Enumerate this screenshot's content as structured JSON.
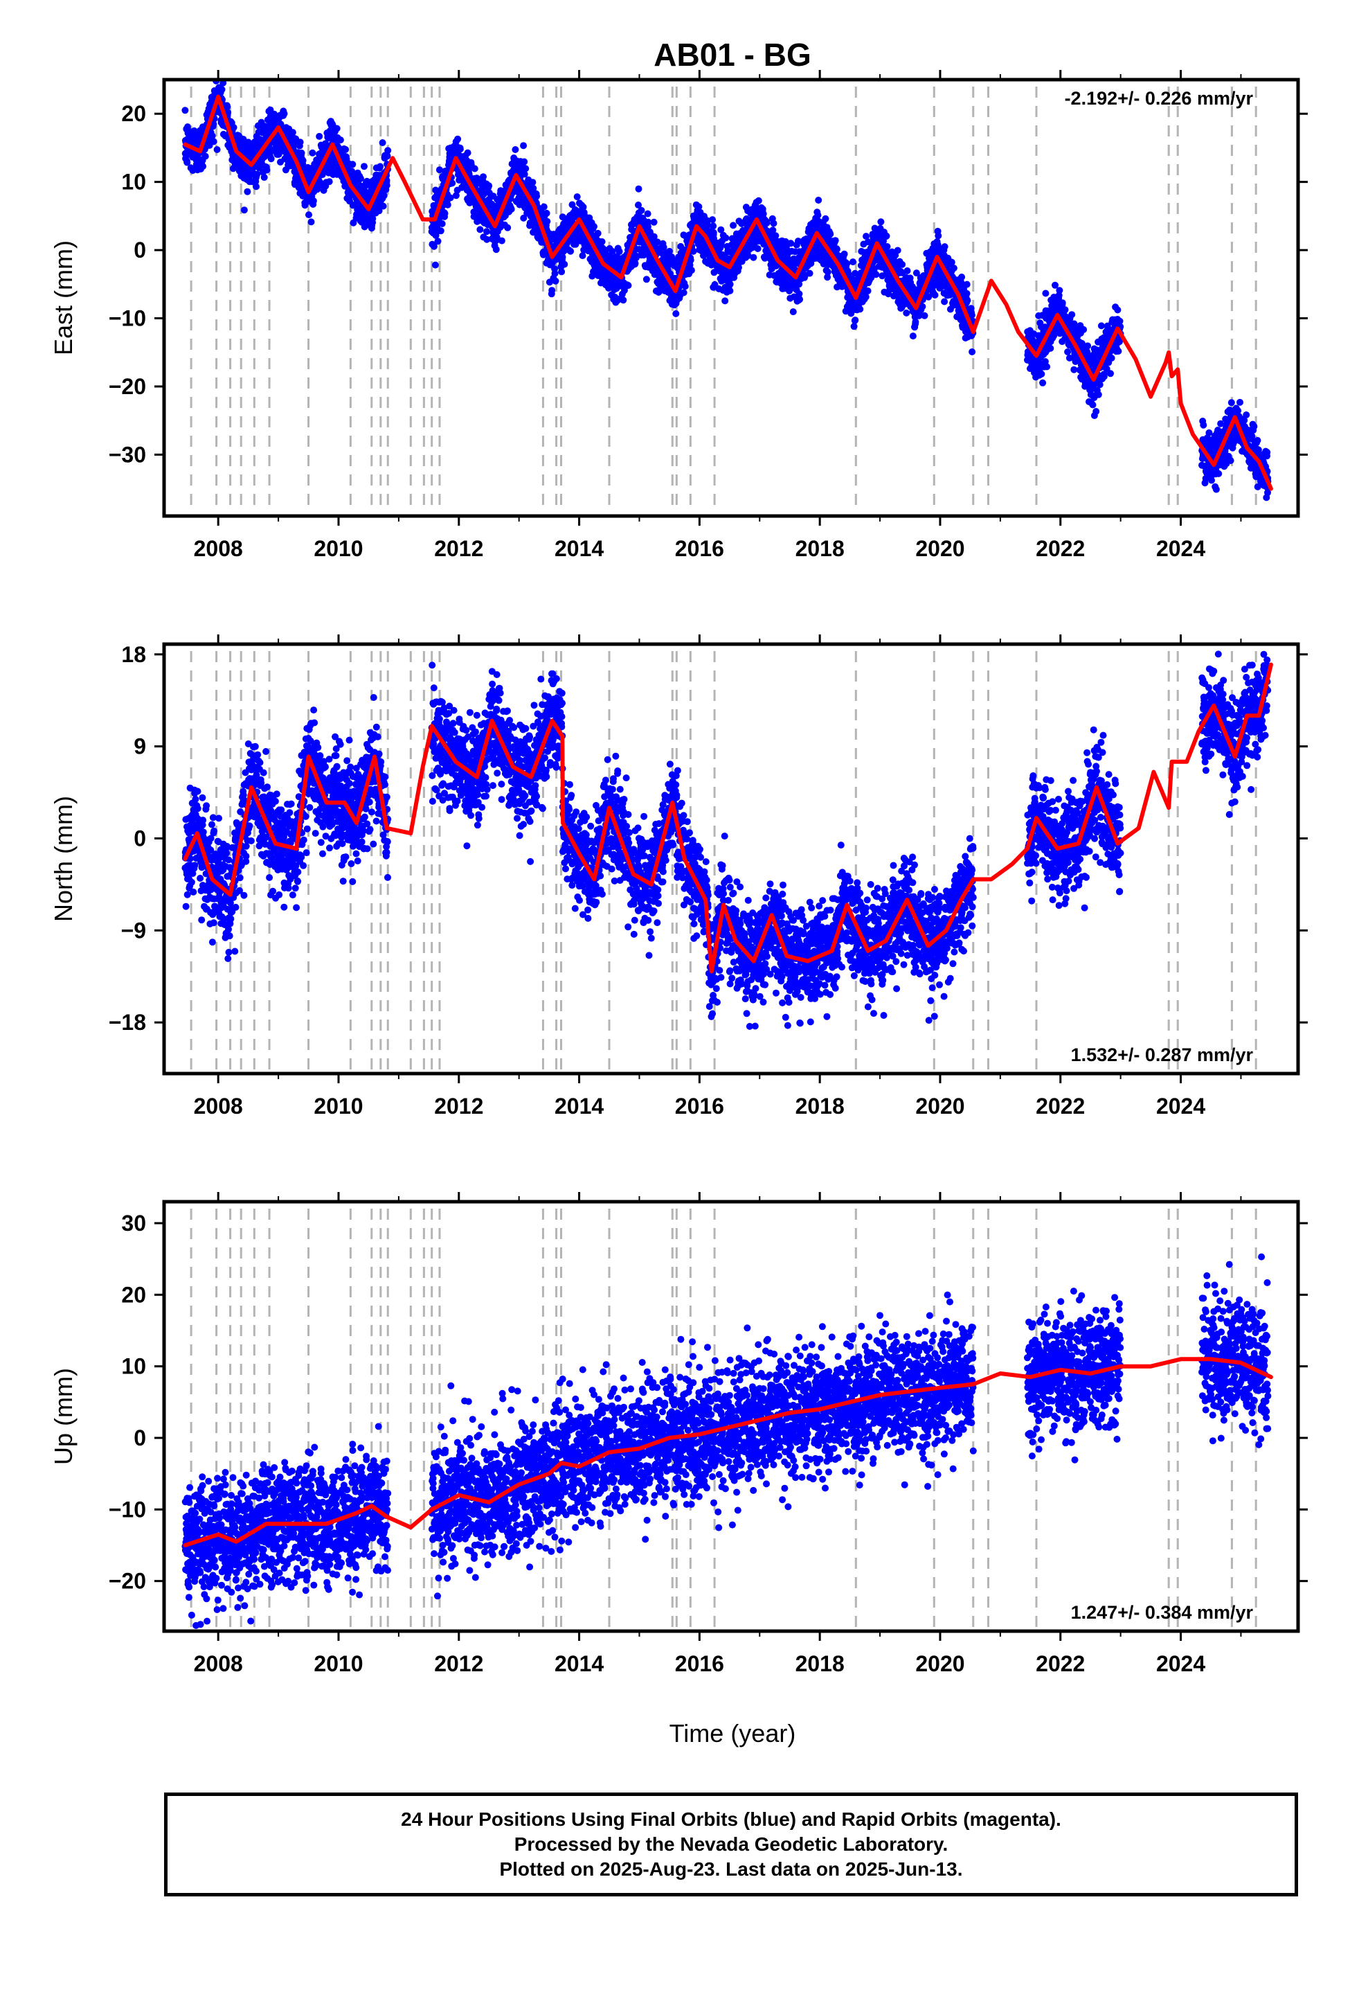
{
  "title": "AB01 - BG",
  "xlabel": "Time (year)",
  "x_ticks": [
    2008,
    2010,
    2012,
    2014,
    2016,
    2018,
    2020,
    2022,
    2024
  ],
  "xlim": [
    2007.1,
    2025.95
  ],
  "colors": {
    "points": "#0000ff",
    "model": "#ff0000",
    "steps": "#b4b4b4"
  },
  "step_dates": [
    2007.55,
    2007.97,
    2008.2,
    2008.38,
    2008.6,
    2008.85,
    2009.5,
    2010.2,
    2010.55,
    2010.7,
    2010.82,
    2011.2,
    2011.42,
    2011.55,
    2011.68,
    2013.4,
    2013.62,
    2013.7,
    2014.5,
    2015.55,
    2015.62,
    2015.85,
    2016.25,
    2018.6,
    2019.9,
    2020.55,
    2020.8,
    2021.6,
    2023.8,
    2023.95,
    2024.85,
    2025.25
  ],
  "caption": [
    "24 Hour Positions Using Final Orbits (blue) and Rapid Orbits (magenta).",
    "Processed by the Nevada Geodetic Laboratory.",
    "Plotted on 2025-Aug-23. Last data on 2025-Jun-13."
  ],
  "chart_data": [
    {
      "type": "scatter",
      "name": "east",
      "ylabel": "East (mm)",
      "rate_text": "-2.192+/- 0.226 mm/yr",
      "rate_position": "top-right",
      "ylim": [
        -39,
        25
      ],
      "y_ticks": [
        -30,
        -20,
        -10,
        0,
        10,
        20
      ],
      "y_tick_labels": [
        "−30",
        "−20",
        "−10",
        "0",
        "10",
        "20"
      ],
      "data_ranges": [
        [
          2007.45,
          2010.82
        ],
        [
          2011.55,
          2020.55
        ],
        [
          2021.45,
          2023.0
        ],
        [
          2024.35,
          2025.45
        ]
      ],
      "scatter_sd": 1.8,
      "model": {
        "x": [
          2007.45,
          2007.7,
          2008.0,
          2008.3,
          2008.55,
          2009.0,
          2009.3,
          2009.5,
          2009.9,
          2010.2,
          2010.5,
          2010.9,
          2011.1,
          2011.4,
          2011.6,
          2011.95,
          2012.2,
          2012.6,
          2012.95,
          2013.25,
          2013.55,
          2014.0,
          2014.4,
          2014.7,
          2015.0,
          2015.3,
          2015.6,
          2015.95,
          2016.1,
          2016.3,
          2016.5,
          2016.95,
          2017.3,
          2017.6,
          2017.95,
          2018.3,
          2018.6,
          2018.95,
          2019.3,
          2019.6,
          2019.95,
          2020.3,
          2020.55,
          2020.85,
          2021.1,
          2021.3,
          2021.6,
          2021.95,
          2022.25,
          2022.55,
          2022.95,
          2023.25,
          2023.5,
          2023.75,
          2023.8,
          2023.85,
          2023.95,
          2024.0,
          2024.2,
          2024.55,
          2024.9,
          2025.1,
          2025.3,
          2025.5
        ],
        "y": [
          15.5,
          14.5,
          22.5,
          14.5,
          12.5,
          18.0,
          13.0,
          8.5,
          15.5,
          9.5,
          6.0,
          13.5,
          10.0,
          4.5,
          4.5,
          13.5,
          9.5,
          3.5,
          11.0,
          6.5,
          -1.0,
          4.5,
          -2.0,
          -4.0,
          3.5,
          -1.5,
          -6.0,
          3.5,
          2.0,
          -1.5,
          -2.5,
          4.5,
          -1.5,
          -4.0,
          2.5,
          -2.0,
          -7.0,
          1.0,
          -4.5,
          -8.5,
          -1.0,
          -6.5,
          -12.0,
          -4.5,
          -8.0,
          -12.0,
          -15.5,
          -9.5,
          -14.0,
          -19.0,
          -11.5,
          -16.0,
          -21.5,
          -16.5,
          -15.0,
          -18.5,
          -17.5,
          -22.5,
          -27.0,
          -31.5,
          -24.5,
          -29.0,
          -31.0,
          -35.0
        ]
      }
    },
    {
      "type": "scatter",
      "name": "north",
      "ylabel": "North (mm)",
      "rate_text": "1.532+/- 0.287 mm/yr",
      "rate_position": "bottom-right",
      "ylim": [
        -23,
        19
      ],
      "y_ticks": [
        -18,
        -9,
        0,
        9,
        18
      ],
      "y_tick_labels": [
        "−18",
        "−9",
        "0",
        "9",
        "18"
      ],
      "data_ranges": [
        [
          2007.45,
          2010.82
        ],
        [
          2011.55,
          2020.55
        ],
        [
          2021.45,
          2023.0
        ],
        [
          2024.35,
          2025.45
        ]
      ],
      "scatter_sd": 2.3,
      "model": {
        "x": [
          2007.45,
          2007.65,
          2007.9,
          2008.2,
          2008.55,
          2008.95,
          2009.3,
          2009.5,
          2009.8,
          2010.1,
          2010.3,
          2010.6,
          2010.8,
          2011.2,
          2011.4,
          2011.55,
          2011.95,
          2012.3,
          2012.55,
          2012.9,
          2013.2,
          2013.55,
          2013.72,
          2013.73,
          2014.0,
          2014.25,
          2014.5,
          2014.9,
          2015.2,
          2015.55,
          2015.75,
          2016.1,
          2016.2,
          2016.4,
          2016.6,
          2016.9,
          2017.2,
          2017.45,
          2017.8,
          2018.2,
          2018.45,
          2018.8,
          2019.1,
          2019.45,
          2019.8,
          2020.1,
          2020.35,
          2020.55,
          2020.85,
          2021.2,
          2021.45,
          2021.6,
          2021.95,
          2022.3,
          2022.6,
          2022.95,
          2023.3,
          2023.55,
          2023.8,
          2023.85,
          2024.1,
          2024.3,
          2024.55,
          2024.9,
          2025.1,
          2025.3,
          2025.5
        ],
        "y": [
          -2.0,
          0.5,
          -4.0,
          -5.5,
          5.0,
          -0.5,
          -1.0,
          8.0,
          3.5,
          3.5,
          1.5,
          8.0,
          1.0,
          0.5,
          7.0,
          11.0,
          7.5,
          6.0,
          11.5,
          7.0,
          6.0,
          11.5,
          10.0,
          1.5,
          -1.5,
          -4.0,
          3.0,
          -3.5,
          -4.5,
          3.5,
          -2.0,
          -6.0,
          -13.0,
          -6.5,
          -10.0,
          -12.0,
          -7.5,
          -11.5,
          -12.0,
          -11.0,
          -6.5,
          -11.0,
          -10.0,
          -6.0,
          -10.5,
          -9.0,
          -6.0,
          -4.0,
          -4.0,
          -2.5,
          -1.0,
          2.0,
          -1.0,
          -0.5,
          5.0,
          -0.5,
          1.0,
          6.5,
          3.0,
          7.5,
          7.5,
          10.5,
          13.0,
          8.0,
          12.0,
          12.0,
          17.0
        ]
      }
    },
    {
      "type": "scatter",
      "name": "up",
      "ylabel": "Up (mm)",
      "rate_text": "1.247+/- 0.384 mm/yr",
      "rate_position": "bottom-right",
      "ylim": [
        -27,
        33
      ],
      "y_ticks": [
        -20,
        -10,
        0,
        10,
        20,
        30
      ],
      "y_tick_labels": [
        "−20",
        "−10",
        "0",
        "10",
        "20",
        "30"
      ],
      "data_ranges": [
        [
          2007.45,
          2010.82
        ],
        [
          2011.55,
          2020.55
        ],
        [
          2021.45,
          2023.0
        ],
        [
          2024.35,
          2025.45
        ]
      ],
      "scatter_sd": 4.2,
      "model": {
        "x": [
          2007.45,
          2008.0,
          2008.3,
          2008.8,
          2009.3,
          2009.8,
          2010.3,
          2010.55,
          2010.8,
          2011.2,
          2011.55,
          2012.0,
          2012.5,
          2013.0,
          2013.5,
          2013.7,
          2014.0,
          2014.5,
          2015.0,
          2015.5,
          2016.0,
          2016.5,
          2017.0,
          2017.5,
          2018.0,
          2018.5,
          2019.0,
          2019.5,
          2020.0,
          2020.55,
          2021.0,
          2021.5,
          2022.0,
          2022.5,
          2023.0,
          2023.5,
          2024.0,
          2024.5,
          2025.0,
          2025.5
        ],
        "y": [
          -15.0,
          -13.5,
          -14.5,
          -12.0,
          -12.0,
          -12.0,
          -10.5,
          -9.5,
          -11.0,
          -12.5,
          -10.0,
          -8.0,
          -9.0,
          -6.5,
          -5.0,
          -3.5,
          -4.0,
          -2.0,
          -1.5,
          0.0,
          0.5,
          1.5,
          2.5,
          3.5,
          4.0,
          5.0,
          6.0,
          6.5,
          7.0,
          7.5,
          9.0,
          8.5,
          9.5,
          9.0,
          10.0,
          10.0,
          11.0,
          11.0,
          10.5,
          8.5
        ]
      }
    }
  ]
}
